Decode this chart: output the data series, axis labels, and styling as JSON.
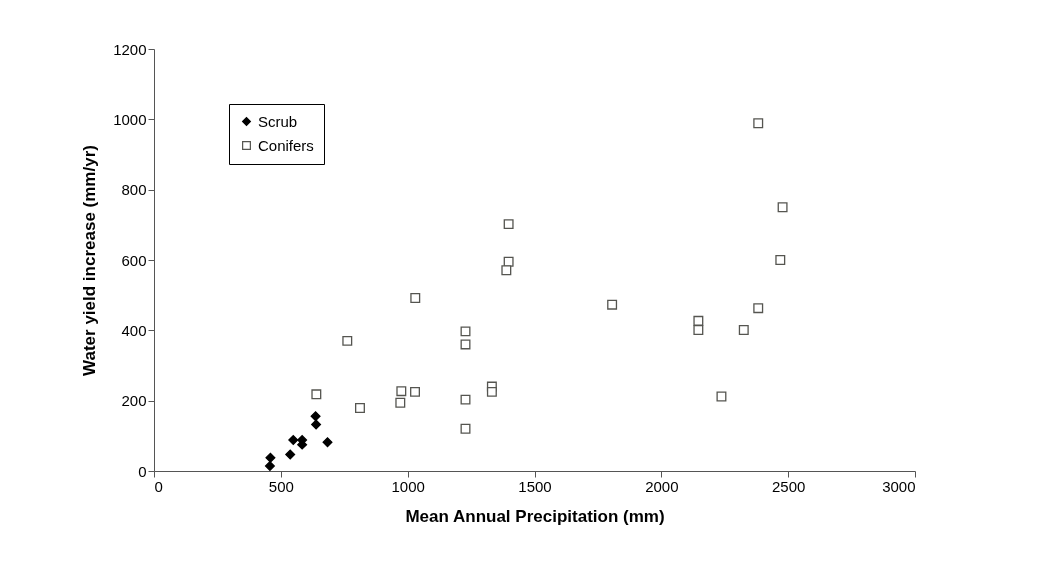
{
  "chart_data": {
    "type": "scatter",
    "xlabel": "Mean Annual Precipitation (mm)",
    "ylabel": "Water yield increase (mm/yr)",
    "xlim": [
      0,
      3000
    ],
    "xticks": [
      0,
      500,
      1000,
      1500,
      2000,
      2500,
      3000
    ],
    "ylim": [
      0,
      1200
    ],
    "yticks": [
      0,
      200,
      400,
      600,
      800,
      1000,
      1200
    ],
    "grid": false,
    "legend": "top left",
    "series": [
      {
        "name": "Scrub",
        "color": "#000000",
        "marker": "diamond",
        "x": [
          457,
          459,
          537,
          549,
          584,
          584,
          637,
          639,
          684
        ],
        "values": [
          14,
          38,
          47,
          88,
          88,
          75,
          156,
          132,
          82
        ]
      },
      {
        "name": "Conifers",
        "color": "#555550",
        "marker": "square",
        "x": [
          762,
          640,
          812,
          975,
          971,
          1029,
          1398,
          1398,
          1389,
          1030,
          1806,
          1228,
          1228,
          1332,
          1332,
          1228,
          1228,
          2382,
          2478,
          2469,
          2382,
          2146,
          2146,
          2325,
          2237
        ],
        "values": [
          370,
          218,
          179,
          227,
          194,
          225,
          702,
          595,
          571,
          492,
          473,
          397,
          360,
          240,
          225,
          203,
          120,
          989,
          750,
          600,
          463,
          427,
          401,
          401,
          212
        ]
      }
    ]
  }
}
